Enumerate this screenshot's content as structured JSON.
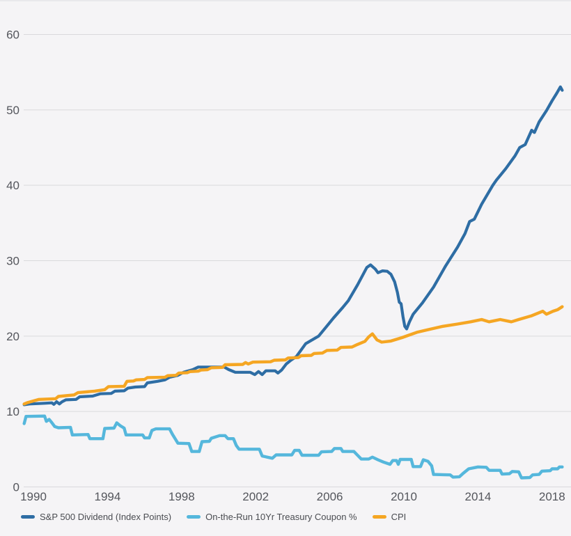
{
  "chart_data": {
    "type": "line",
    "title": "",
    "xlabel": "",
    "ylabel": "",
    "grid": "horizontal",
    "legend_position": "bottom-left",
    "background_color": "#f5f4f6",
    "gridline_color": "#d9d9dc",
    "tick_text_color": "#54565c",
    "xlim": [
      1989.5,
      2018.8
    ],
    "ylim": [
      0,
      60
    ],
    "x_ticks": [
      "1990",
      "1994",
      "1998",
      "2002",
      "2006",
      "2010",
      "2014",
      "2018"
    ],
    "y_ticks": [
      "0",
      "10",
      "20",
      "30",
      "40",
      "50",
      "60"
    ],
    "series": [
      {
        "name": "S&P 500 Dividend (Index Points)",
        "color": "#2e6da4",
        "line_width": 4.2,
        "points": [
          [
            1989.5,
            10.9
          ],
          [
            1989.8,
            11.0
          ],
          [
            1990.2,
            11.05
          ],
          [
            1990.6,
            11.1
          ],
          [
            1991.0,
            11.15
          ],
          [
            1991.1,
            10.95
          ],
          [
            1991.25,
            11.3
          ],
          [
            1991.4,
            11.0
          ],
          [
            1991.55,
            11.3
          ],
          [
            1991.75,
            11.55
          ],
          [
            1992.3,
            11.6
          ],
          [
            1992.5,
            11.95
          ],
          [
            1993.2,
            12.05
          ],
          [
            1993.6,
            12.35
          ],
          [
            1994.2,
            12.4
          ],
          [
            1994.4,
            12.7
          ],
          [
            1994.9,
            12.75
          ],
          [
            1995.1,
            13.1
          ],
          [
            1995.5,
            13.25
          ],
          [
            1996.0,
            13.3
          ],
          [
            1996.15,
            13.8
          ],
          [
            1996.7,
            14.0
          ],
          [
            1997.1,
            14.2
          ],
          [
            1997.35,
            14.55
          ],
          [
            1997.8,
            14.8
          ],
          [
            1998.1,
            15.2
          ],
          [
            1998.6,
            15.55
          ],
          [
            1998.9,
            15.9
          ],
          [
            2000.3,
            15.9
          ],
          [
            2000.55,
            15.55
          ],
          [
            2000.9,
            15.2
          ],
          [
            2001.7,
            15.2
          ],
          [
            2001.95,
            14.9
          ],
          [
            2002.15,
            15.3
          ],
          [
            2002.35,
            14.9
          ],
          [
            2002.55,
            15.4
          ],
          [
            2003.05,
            15.4
          ],
          [
            2003.2,
            15.1
          ],
          [
            2003.4,
            15.5
          ],
          [
            2003.65,
            16.3
          ],
          [
            2003.9,
            16.8
          ],
          [
            2004.2,
            17.3
          ],
          [
            2004.7,
            19.0
          ],
          [
            2005.4,
            20.0
          ],
          [
            2005.8,
            21.2
          ],
          [
            2006.2,
            22.4
          ],
          [
            2006.7,
            23.8
          ],
          [
            2007.0,
            24.7
          ],
          [
            2007.5,
            26.8
          ],
          [
            2008.0,
            29.1
          ],
          [
            2008.2,
            29.45
          ],
          [
            2008.45,
            28.9
          ],
          [
            2008.6,
            28.4
          ],
          [
            2008.85,
            28.65
          ],
          [
            2009.1,
            28.6
          ],
          [
            2009.3,
            28.2
          ],
          [
            2009.5,
            27.2
          ],
          [
            2009.65,
            25.8
          ],
          [
            2009.75,
            24.5
          ],
          [
            2009.85,
            24.3
          ],
          [
            2009.95,
            22.6
          ],
          [
            2010.05,
            21.3
          ],
          [
            2010.15,
            20.95
          ],
          [
            2010.3,
            21.9
          ],
          [
            2010.5,
            22.9
          ],
          [
            2011.0,
            24.4
          ],
          [
            2011.6,
            26.5
          ],
          [
            2012.25,
            29.3
          ],
          [
            2012.9,
            31.8
          ],
          [
            2013.3,
            33.6
          ],
          [
            2013.55,
            35.2
          ],
          [
            2013.8,
            35.5
          ],
          [
            2014.2,
            37.5
          ],
          [
            2014.8,
            40.0
          ],
          [
            2015.0,
            40.7
          ],
          [
            2015.5,
            42.2
          ],
          [
            2016.0,
            43.9
          ],
          [
            2016.25,
            45.0
          ],
          [
            2016.55,
            45.4
          ],
          [
            2016.9,
            47.3
          ],
          [
            2017.05,
            47.0
          ],
          [
            2017.3,
            48.4
          ],
          [
            2017.7,
            49.9
          ],
          [
            2018.0,
            51.2
          ],
          [
            2018.25,
            52.2
          ],
          [
            2018.45,
            53.05
          ],
          [
            2018.55,
            52.6
          ]
        ]
      },
      {
        "name": "On-the-Run 10Yr Treasury Coupon %",
        "color": "#55b7dc",
        "line_width": 4.4,
        "points": [
          [
            1989.5,
            8.4
          ],
          [
            1989.6,
            9.35
          ],
          [
            1990.6,
            9.4
          ],
          [
            1990.7,
            8.7
          ],
          [
            1990.85,
            8.95
          ],
          [
            1991.0,
            8.5
          ],
          [
            1991.15,
            8.0
          ],
          [
            1991.35,
            7.85
          ],
          [
            1992.0,
            7.9
          ],
          [
            1992.1,
            6.9
          ],
          [
            1992.95,
            6.95
          ],
          [
            1993.05,
            6.4
          ],
          [
            1993.75,
            6.4
          ],
          [
            1993.85,
            7.75
          ],
          [
            1994.35,
            7.8
          ],
          [
            1994.5,
            8.5
          ],
          [
            1994.7,
            8.1
          ],
          [
            1994.9,
            7.8
          ],
          [
            1995.0,
            6.9
          ],
          [
            1995.9,
            6.9
          ],
          [
            1996.0,
            6.5
          ],
          [
            1996.25,
            6.5
          ],
          [
            1996.4,
            7.5
          ],
          [
            1996.6,
            7.7
          ],
          [
            1997.35,
            7.7
          ],
          [
            1997.5,
            7.0
          ],
          [
            1997.8,
            5.8
          ],
          [
            1998.4,
            5.75
          ],
          [
            1998.55,
            4.7
          ],
          [
            1998.95,
            4.7
          ],
          [
            1999.1,
            6.0
          ],
          [
            1999.5,
            6.05
          ],
          [
            1999.6,
            6.45
          ],
          [
            2000.05,
            6.8
          ],
          [
            2000.35,
            6.8
          ],
          [
            2000.5,
            6.4
          ],
          [
            2000.8,
            6.4
          ],
          [
            2000.95,
            5.5
          ],
          [
            2001.1,
            5.0
          ],
          [
            2002.2,
            5.0
          ],
          [
            2002.35,
            4.1
          ],
          [
            2002.9,
            3.8
          ],
          [
            2003.1,
            4.25
          ],
          [
            2003.95,
            4.25
          ],
          [
            2004.1,
            4.85
          ],
          [
            2004.35,
            4.85
          ],
          [
            2004.5,
            4.2
          ],
          [
            2005.4,
            4.2
          ],
          [
            2005.55,
            4.65
          ],
          [
            2006.1,
            4.7
          ],
          [
            2006.25,
            5.1
          ],
          [
            2006.6,
            5.1
          ],
          [
            2006.7,
            4.7
          ],
          [
            2007.3,
            4.7
          ],
          [
            2007.5,
            4.2
          ],
          [
            2007.7,
            3.7
          ],
          [
            2008.1,
            3.7
          ],
          [
            2008.3,
            3.95
          ],
          [
            2008.6,
            3.6
          ],
          [
            2008.9,
            3.3
          ],
          [
            2009.25,
            3.0
          ],
          [
            2009.4,
            3.5
          ],
          [
            2009.6,
            3.5
          ],
          [
            2009.7,
            3.0
          ],
          [
            2009.8,
            3.65
          ],
          [
            2010.4,
            3.65
          ],
          [
            2010.5,
            2.7
          ],
          [
            2010.9,
            2.7
          ],
          [
            2011.05,
            3.6
          ],
          [
            2011.3,
            3.4
          ],
          [
            2011.5,
            2.8
          ],
          [
            2011.6,
            1.65
          ],
          [
            2012.5,
            1.6
          ],
          [
            2012.65,
            1.3
          ],
          [
            2013.0,
            1.35
          ],
          [
            2013.2,
            1.8
          ],
          [
            2013.5,
            2.4
          ],
          [
            2014.0,
            2.65
          ],
          [
            2014.45,
            2.6
          ],
          [
            2014.6,
            2.2
          ],
          [
            2015.2,
            2.2
          ],
          [
            2015.3,
            1.7
          ],
          [
            2015.7,
            1.75
          ],
          [
            2015.85,
            2.05
          ],
          [
            2016.2,
            2.0
          ],
          [
            2016.35,
            1.2
          ],
          [
            2016.8,
            1.25
          ],
          [
            2016.95,
            1.6
          ],
          [
            2017.3,
            1.65
          ],
          [
            2017.45,
            2.1
          ],
          [
            2017.9,
            2.15
          ],
          [
            2018.0,
            2.4
          ],
          [
            2018.3,
            2.4
          ],
          [
            2018.4,
            2.65
          ],
          [
            2018.55,
            2.65
          ]
        ]
      },
      {
        "name": "CPI",
        "color": "#f5a623",
        "line_width": 4.4,
        "points": [
          [
            1989.5,
            11.0
          ],
          [
            1989.7,
            11.2
          ],
          [
            1990.3,
            11.6
          ],
          [
            1991.2,
            11.7
          ],
          [
            1991.35,
            12.0
          ],
          [
            1992.2,
            12.2
          ],
          [
            1992.4,
            12.5
          ],
          [
            1993.3,
            12.7
          ],
          [
            1993.85,
            12.9
          ],
          [
            1994.05,
            13.3
          ],
          [
            1994.9,
            13.35
          ],
          [
            1995.05,
            14.0
          ],
          [
            1995.4,
            14.05
          ],
          [
            1995.55,
            14.2
          ],
          [
            1996.0,
            14.25
          ],
          [
            1996.15,
            14.5
          ],
          [
            1997.1,
            14.55
          ],
          [
            1997.25,
            14.75
          ],
          [
            1997.7,
            14.8
          ],
          [
            1997.85,
            15.1
          ],
          [
            1998.3,
            15.15
          ],
          [
            1998.45,
            15.3
          ],
          [
            1998.9,
            15.35
          ],
          [
            1999.05,
            15.5
          ],
          [
            1999.4,
            15.55
          ],
          [
            1999.6,
            15.8
          ],
          [
            2000.2,
            15.85
          ],
          [
            2000.35,
            16.2
          ],
          [
            2001.3,
            16.25
          ],
          [
            2001.45,
            16.5
          ],
          [
            2001.6,
            16.3
          ],
          [
            2001.85,
            16.55
          ],
          [
            2002.8,
            16.6
          ],
          [
            2003.0,
            16.8
          ],
          [
            2003.6,
            16.85
          ],
          [
            2003.75,
            17.1
          ],
          [
            2004.3,
            17.15
          ],
          [
            2004.45,
            17.4
          ],
          [
            2005.0,
            17.45
          ],
          [
            2005.15,
            17.7
          ],
          [
            2005.6,
            17.75
          ],
          [
            2005.85,
            18.1
          ],
          [
            2006.4,
            18.15
          ],
          [
            2006.6,
            18.5
          ],
          [
            2007.2,
            18.55
          ],
          [
            2007.5,
            18.9
          ],
          [
            2007.9,
            19.3
          ],
          [
            2008.1,
            19.9
          ],
          [
            2008.3,
            20.3
          ],
          [
            2008.55,
            19.5
          ],
          [
            2008.8,
            19.2
          ],
          [
            2009.3,
            19.35
          ],
          [
            2009.9,
            19.8
          ],
          [
            2010.7,
            20.5
          ],
          [
            2011.3,
            20.85
          ],
          [
            2012.1,
            21.3
          ],
          [
            2012.9,
            21.6
          ],
          [
            2013.6,
            21.9
          ],
          [
            2014.2,
            22.2
          ],
          [
            2014.6,
            21.9
          ],
          [
            2015.2,
            22.2
          ],
          [
            2015.8,
            21.9
          ],
          [
            2016.2,
            22.2
          ],
          [
            2016.9,
            22.7
          ],
          [
            2017.5,
            23.3
          ],
          [
            2017.7,
            22.9
          ],
          [
            2018.05,
            23.3
          ],
          [
            2018.3,
            23.5
          ],
          [
            2018.55,
            23.9
          ]
        ]
      }
    ]
  }
}
